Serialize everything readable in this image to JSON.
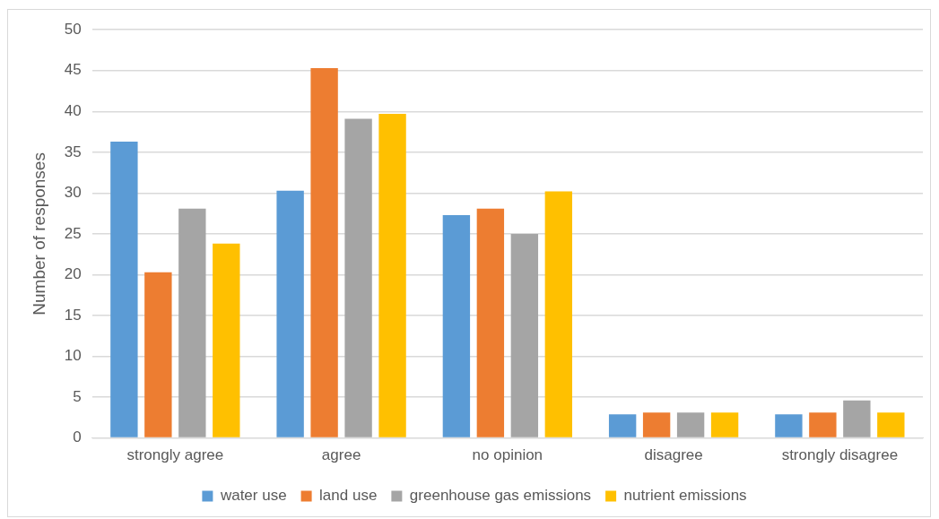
{
  "chart_data": {
    "type": "bar",
    "ylabel": "Number of responses",
    "categories": [
      "strongly agree",
      "agree",
      "no opinion",
      "disagree",
      "strongly disagree"
    ],
    "series": [
      {
        "name": "water use",
        "color": "#5b9bd5",
        "values": [
          36.3,
          30.3,
          27.3,
          2.9,
          2.9
        ]
      },
      {
        "name": "land use",
        "color": "#ed7d31",
        "values": [
          20.3,
          45.3,
          28.1,
          3.1,
          3.1
        ]
      },
      {
        "name": "greenhouse gas emissions",
        "color": "#a5a5a5",
        "values": [
          28.1,
          39.1,
          25.0,
          3.1,
          4.6
        ]
      },
      {
        "name": "nutrient emissions",
        "color": "#ffc000",
        "values": [
          23.8,
          39.7,
          30.2,
          3.1,
          3.1
        ]
      }
    ],
    "ylim": [
      0,
      50
    ],
    "yticks": [
      0,
      5,
      10,
      15,
      20,
      25,
      30,
      35,
      40,
      45,
      50
    ],
    "grid": "y",
    "legend": "bottom"
  }
}
